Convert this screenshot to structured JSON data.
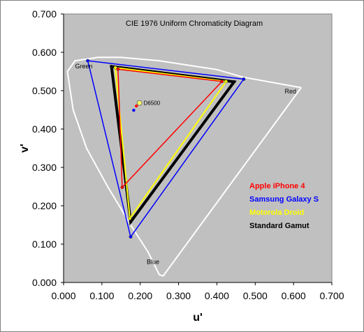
{
  "chart_data": {
    "type": "line",
    "title": "CIE 1976 Uniform Chromaticity Diagram",
    "xlabel": "u'",
    "ylabel": "v'",
    "xlim": [
      0,
      0.7
    ],
    "ylim": [
      0,
      0.7
    ],
    "xticks": [
      "0.000",
      "0.100",
      "0.200",
      "0.300",
      "0.400",
      "0.500",
      "0.600",
      "0.700"
    ],
    "yticks": [
      "0.000",
      "0.100",
      "0.200",
      "0.300",
      "0.400",
      "0.500",
      "0.600",
      "0.700"
    ],
    "grid": false,
    "legend_position": "right",
    "plot_background": "#c0c0c0",
    "spectral_locus": {
      "color": "#ffffff",
      "points": [
        [
          0.62,
          0.508
        ],
        [
          0.47,
          0.535
        ],
        [
          0.4,
          0.555
        ],
        [
          0.25,
          0.578
        ],
        [
          0.15,
          0.587
        ],
        [
          0.09,
          0.587
        ],
        [
          0.03,
          0.578
        ],
        [
          0.01,
          0.55
        ],
        [
          0.025,
          0.45
        ],
        [
          0.06,
          0.35
        ],
        [
          0.115,
          0.25
        ],
        [
          0.175,
          0.15
        ],
        [
          0.22,
          0.08
        ],
        [
          0.25,
          0.02
        ],
        [
          0.26,
          0.017
        ],
        [
          0.62,
          0.508
        ]
      ]
    },
    "region_labels": [
      {
        "text": "Green",
        "u": 0.03,
        "v": 0.558
      },
      {
        "text": "Red",
        "u": 0.577,
        "v": 0.493
      },
      {
        "text": "Blue",
        "u": 0.217,
        "v": 0.048
      }
    ],
    "white_point": {
      "label": "D6500",
      "u": 0.198,
      "v": 0.468
    },
    "series": [
      {
        "name": "Apple iPhone 4",
        "color": "#ff0000",
        "points": [
          [
            0.142,
            0.556
          ],
          [
            0.413,
            0.524
          ],
          [
            0.153,
            0.248
          ]
        ],
        "white": [
          0.19,
          0.46
        ]
      },
      {
        "name": "Samsung Galaxy S",
        "color": "#0000ff",
        "points": [
          [
            0.063,
            0.578
          ],
          [
            0.47,
            0.53
          ],
          [
            0.175,
            0.119
          ]
        ],
        "white": [
          0.183,
          0.449
        ]
      },
      {
        "name": "Motorola Droid",
        "color": "#ffff00",
        "points": [
          [
            0.135,
            0.56
          ],
          [
            0.424,
            0.524
          ],
          [
            0.173,
            0.167
          ]
        ],
        "white": null
      },
      {
        "name": "Standard Gamut",
        "color": "#000000",
        "points": [
          [
            0.125,
            0.563
          ],
          [
            0.445,
            0.523
          ],
          [
            0.175,
            0.158
          ]
        ],
        "white": null
      }
    ]
  }
}
